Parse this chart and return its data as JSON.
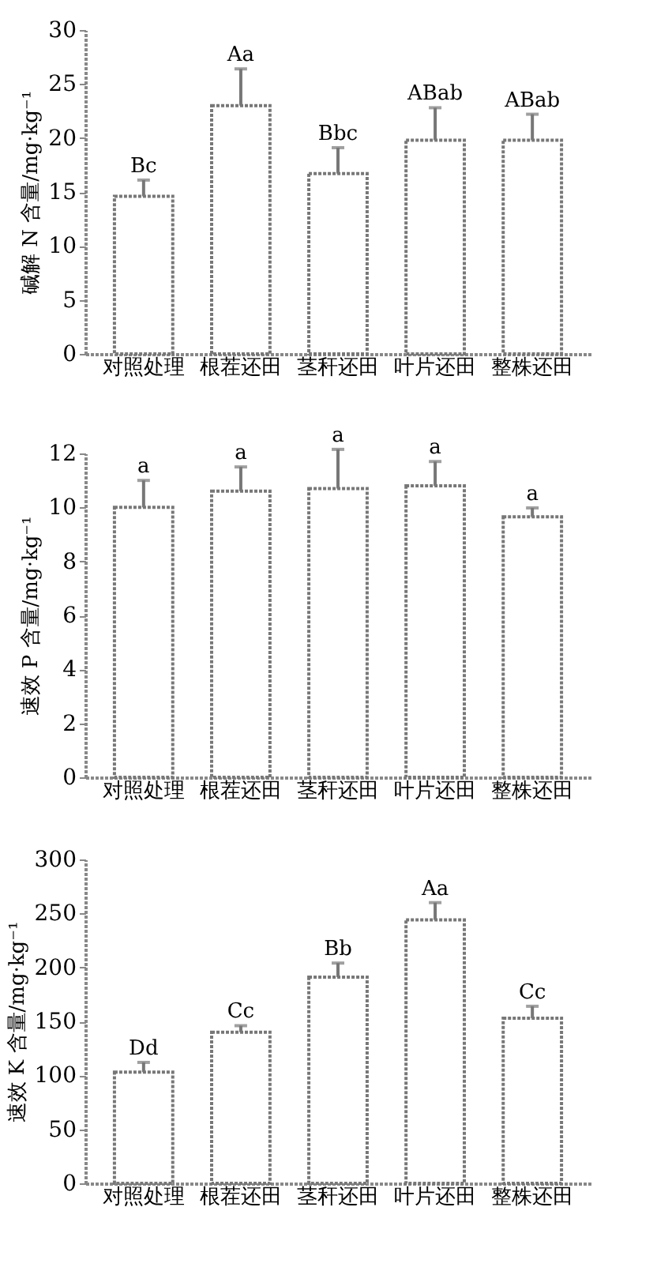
{
  "chart_data": [
    {
      "type": "bar",
      "ylabel": "碱解 N 含量/mg·kg⁻¹",
      "categories": [
        "对照处理",
        "根茬还田",
        "茎秆还田",
        "叶片还田",
        "整株还田"
      ],
      "values": [
        14.6,
        23.0,
        16.7,
        19.8,
        19.8
      ],
      "color": "#ffffff",
      "errors": [
        [
          14.6,
          16.1
        ],
        [
          23.0,
          26.4
        ],
        [
          16.7,
          19.1
        ],
        [
          19.8,
          22.8
        ],
        [
          19.8,
          22.2
        ]
      ],
      "ylim": [
        0,
        30
      ],
      "yticks": [
        0,
        5,
        10,
        15,
        20,
        25,
        30
      ],
      "annotations": [
        {
          "text": "Bc",
          "x": "对照处理",
          "y": 16.1
        },
        {
          "text": "Aa",
          "x": "根茬还田",
          "y": 26.4
        },
        {
          "text": "Bbc",
          "x": "茎秆还田",
          "y": 19.1
        },
        {
          "text": "ABab",
          "x": "叶片还田",
          "y": 22.8
        },
        {
          "text": "ABab",
          "x": "整株还田",
          "y": 22.2
        }
      ]
    },
    {
      "type": "bar",
      "ylabel": "速效 P 含量/mg·kg⁻¹",
      "categories": [
        "对照处理",
        "根茬还田",
        "茎秆还田",
        "叶片还田",
        "整株还田"
      ],
      "values": [
        10.0,
        10.6,
        10.7,
        10.8,
        9.65
      ],
      "color": "#ffffff",
      "errors": [
        [
          10.0,
          11.0
        ],
        [
          10.6,
          11.5
        ],
        [
          10.7,
          12.15
        ],
        [
          10.8,
          11.7
        ],
        [
          9.65,
          9.98
        ]
      ],
      "ylim": [
        0,
        12
      ],
      "yticks": [
        0,
        2,
        4,
        6,
        8,
        10,
        12
      ],
      "annotations": [
        {
          "text": "a",
          "x": "对照处理",
          "y": 11.0
        },
        {
          "text": "a",
          "x": "根茬还田",
          "y": 11.5
        },
        {
          "text": "a",
          "x": "茎秆还田",
          "y": 12.15
        },
        {
          "text": "a",
          "x": "叶片还田",
          "y": 11.7
        },
        {
          "text": "a",
          "x": "整株还田",
          "y": 9.98
        }
      ]
    },
    {
      "type": "bar",
      "ylabel": "速效 K 含量/mg·kg⁻¹",
      "categories": [
        "对照处理",
        "根茬还田",
        "茎秆还田",
        "叶片还田",
        "整株还田"
      ],
      "values": [
        103,
        140,
        191,
        244,
        153
      ],
      "color": "#ffffff",
      "errors": [
        [
          103,
          112
        ],
        [
          140,
          146
        ],
        [
          191,
          204
        ],
        [
          244,
          260
        ],
        [
          153,
          164
        ]
      ],
      "ylim": [
        0,
        300
      ],
      "yticks": [
        0,
        50,
        100,
        150,
        200,
        250,
        300
      ],
      "annotations": [
        {
          "text": "Dd",
          "x": "对照处理",
          "y": 112
        },
        {
          "text": "Cc",
          "x": "根茬还田",
          "y": 146
        },
        {
          "text": "Bb",
          "x": "茎秆还田",
          "y": 204
        },
        {
          "text": "Aa",
          "x": "叶片还田",
          "y": 260
        },
        {
          "text": "Cc",
          "x": "整株还田",
          "y": 164
        }
      ]
    }
  ]
}
